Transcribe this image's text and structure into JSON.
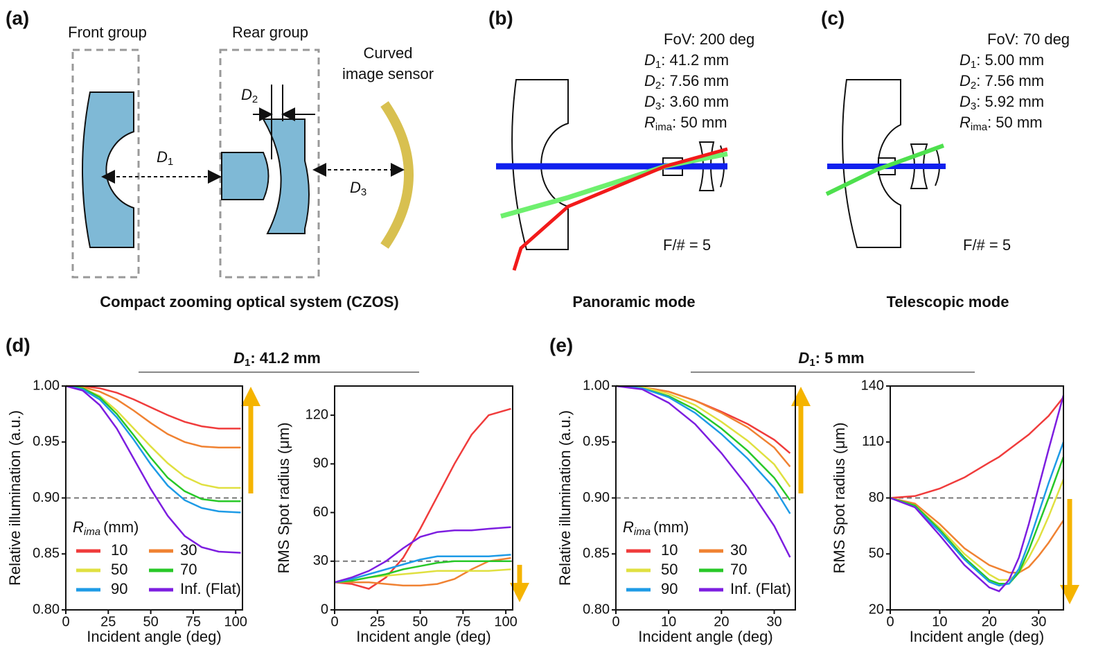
{
  "panel_labels": [
    "(a)",
    "(b)",
    "(c)",
    "(d)",
    "(e)"
  ],
  "diagram_a": {
    "front": "Front group",
    "rear": "Rear group",
    "sensor": [
      "Curved",
      "image sensor"
    ],
    "d1": [
      "D",
      "1"
    ],
    "d2": [
      "D",
      "2"
    ],
    "d3": [
      "D",
      "3"
    ],
    "caption": "Compact zooming optical system (CZOS)"
  },
  "diagram_b": {
    "specs": [
      [
        "FoV: 200 deg"
      ],
      [
        "D",
        "1",
        ": 41.2 mm"
      ],
      [
        "D",
        "2",
        ": 7.56 mm"
      ],
      [
        "D",
        "3",
        ": 3.60 mm"
      ],
      [
        "R",
        "ima",
        ": 50 mm"
      ]
    ],
    "fnum": "F/# = 5",
    "caption": "Panoramic mode"
  },
  "diagram_c": {
    "specs": [
      [
        "FoV: 70 deg"
      ],
      [
        "D",
        "1",
        ": 5.00 mm"
      ],
      [
        "D",
        "2",
        ": 7.56 mm"
      ],
      [
        "D",
        "3",
        ": 5.92 mm"
      ],
      [
        "R",
        "ima",
        ": 50 mm"
      ]
    ],
    "fnum": "F/# = 5",
    "caption": "Telescopic mode"
  },
  "group_headers": [
    [
      "D",
      "1",
      ": 41.2 mm"
    ],
    [
      "D",
      "1",
      ": 5 mm"
    ]
  ],
  "chart_data": [
    {
      "type": "line",
      "xlabel": "Incident angle (deg)",
      "ylabel": "Relative illumination (a.u.)",
      "x": [
        0,
        10,
        20,
        30,
        40,
        50,
        60,
        70,
        80,
        90,
        103
      ],
      "xlim": [
        0,
        104
      ],
      "xticks": [
        0,
        25,
        50,
        75,
        100
      ],
      "ylim": [
        0.8,
        1.0
      ],
      "yticks": [
        {
          "value": 0.8,
          "label": "0.80"
        },
        {
          "value": 0.85,
          "label": "0.85"
        },
        {
          "value": 0.9,
          "label": "0.90"
        },
        {
          "value": 0.95,
          "label": "0.95"
        },
        {
          "value": 1.0,
          "label": "1.00"
        }
      ],
      "reference_line": 0.9,
      "legend": true,
      "legend_title": [
        "R",
        "ima",
        "(mm)"
      ],
      "series": [
        {
          "name": "10",
          "color": "#f03c3c",
          "values": [
            1.0,
            1.0,
            0.998,
            0.994,
            0.988,
            0.981,
            0.974,
            0.968,
            0.964,
            0.962,
            0.962
          ]
        },
        {
          "name": "30",
          "color": "#f08232",
          "values": [
            1.0,
            0.999,
            0.995,
            0.988,
            0.978,
            0.967,
            0.957,
            0.95,
            0.946,
            0.945,
            0.945
          ]
        },
        {
          "name": "50",
          "color": "#e0e040",
          "values": [
            1.0,
            0.998,
            0.991,
            0.978,
            0.962,
            0.946,
            0.931,
            0.919,
            0.912,
            0.909,
            0.909
          ]
        },
        {
          "name": "70",
          "color": "#28c828",
          "values": [
            1.0,
            0.998,
            0.99,
            0.975,
            0.956,
            0.936,
            0.918,
            0.906,
            0.899,
            0.897,
            0.897
          ]
        },
        {
          "name": "90",
          "color": "#1e9be6",
          "values": [
            1.0,
            0.997,
            0.988,
            0.972,
            0.952,
            0.93,
            0.911,
            0.898,
            0.891,
            0.888,
            0.887
          ]
        },
        {
          "name": "Inf. (Flat)",
          "color": "#7d1ee0",
          "values": [
            1.0,
            0.996,
            0.983,
            0.962,
            0.935,
            0.908,
            0.884,
            0.866,
            0.856,
            0.852,
            0.851
          ]
        }
      ]
    },
    {
      "type": "line",
      "xlabel": "Incident angle (deg)",
      "ylabel": "RMS Spot radius (μm)",
      "x": [
        0,
        10,
        20,
        30,
        40,
        50,
        60,
        70,
        80,
        90,
        103
      ],
      "xlim": [
        0,
        104
      ],
      "xticks": [
        0,
        25,
        50,
        75,
        100
      ],
      "ylim": [
        0,
        138
      ],
      "yticks": [
        0,
        30,
        60,
        90,
        120
      ],
      "reference_line": 30,
      "legend": false,
      "series": [
        {
          "name": "10",
          "color": "#f03c3c",
          "values": [
            17,
            16,
            13,
            20,
            32,
            50,
            70,
            90,
            108,
            120,
            124
          ]
        },
        {
          "name": "30",
          "color": "#f08232",
          "values": [
            17,
            17,
            17,
            16,
            15,
            15,
            16,
            19,
            25,
            30,
            32
          ]
        },
        {
          "name": "50",
          "color": "#e0e040",
          "values": [
            17,
            18,
            20,
            21,
            22,
            23,
            24,
            24,
            24,
            24,
            25
          ]
        },
        {
          "name": "70",
          "color": "#28c828",
          "values": [
            17,
            18,
            20,
            22,
            25,
            27,
            29,
            30,
            30,
            30,
            30
          ]
        },
        {
          "name": "90",
          "color": "#1e9be6",
          "values": [
            17,
            19,
            22,
            25,
            28,
            31,
            33,
            33,
            33,
            33,
            34
          ]
        },
        {
          "name": "Inf. (Flat)",
          "color": "#7d1ee0",
          "values": [
            17,
            20,
            24,
            30,
            38,
            45,
            48,
            49,
            49,
            50,
            51
          ]
        }
      ]
    },
    {
      "type": "line",
      "xlabel": "Incident angle (deg)",
      "ylabel": "Relative illumination (a.u.)",
      "x": [
        0,
        5,
        10,
        15,
        20,
        25,
        30,
        33
      ],
      "xlim": [
        0,
        34
      ],
      "xticks": [
        0,
        10,
        20,
        30
      ],
      "ylim": [
        0.8,
        1.0
      ],
      "yticks": [
        {
          "value": 0.8,
          "label": "0.80"
        },
        {
          "value": 0.85,
          "label": "0.85"
        },
        {
          "value": 0.9,
          "label": "0.90"
        },
        {
          "value": 0.95,
          "label": "0.95"
        },
        {
          "value": 1.0,
          "label": "1.00"
        }
      ],
      "reference_line": 0.9,
      "legend": true,
      "legend_title": [
        "R",
        "ima",
        "(mm)"
      ],
      "series": [
        {
          "name": "10",
          "color": "#f03c3c",
          "values": [
            1.0,
            0.999,
            0.995,
            0.987,
            0.977,
            0.966,
            0.952,
            0.94
          ]
        },
        {
          "name": "30",
          "color": "#f08232",
          "values": [
            1.0,
            0.999,
            0.995,
            0.987,
            0.976,
            0.963,
            0.945,
            0.928
          ]
        },
        {
          "name": "50",
          "color": "#e0e040",
          "values": [
            1.0,
            0.999,
            0.993,
            0.983,
            0.968,
            0.951,
            0.93,
            0.91
          ]
        },
        {
          "name": "70",
          "color": "#28c828",
          "values": [
            1.0,
            0.998,
            0.991,
            0.979,
            0.962,
            0.942,
            0.918,
            0.898
          ]
        },
        {
          "name": "90",
          "color": "#1e9be6",
          "values": [
            1.0,
            0.998,
            0.99,
            0.976,
            0.957,
            0.935,
            0.909,
            0.886
          ]
        },
        {
          "name": "Inf. (Flat)",
          "color": "#7d1ee0",
          "values": [
            1.0,
            0.997,
            0.985,
            0.966,
            0.94,
            0.91,
            0.875,
            0.847
          ]
        }
      ]
    },
    {
      "type": "line",
      "xlabel": "Incident angle (deg)",
      "ylabel": "RMS Spot radius (μm)",
      "x": [
        0,
        5,
        10,
        15,
        20,
        22,
        24,
        26,
        28,
        30,
        32,
        35
      ],
      "xlim": [
        0,
        35
      ],
      "xticks": [
        0,
        10,
        20,
        30
      ],
      "ylim": [
        20,
        140
      ],
      "yticks": [
        20,
        50,
        80,
        110,
        140
      ],
      "reference_line": 80,
      "legend": false,
      "series": [
        {
          "name": "10",
          "color": "#f03c3c",
          "values": [
            80,
            81,
            85,
            91,
            99,
            102,
            106,
            110,
            114,
            119,
            124,
            134
          ]
        },
        {
          "name": "30",
          "color": "#f08232",
          "values": [
            80,
            77,
            66,
            53,
            44,
            42,
            40,
            40,
            43,
            49,
            56,
            68
          ]
        },
        {
          "name": "50",
          "color": "#e0e040",
          "values": [
            80,
            76,
            64,
            50,
            39,
            36,
            36,
            40,
            48,
            58,
            70,
            90
          ]
        },
        {
          "name": "70",
          "color": "#28c828",
          "values": [
            80,
            76,
            63,
            48,
            36,
            34,
            34,
            40,
            52,
            66,
            80,
            102
          ]
        },
        {
          "name": "90",
          "color": "#1e9be6",
          "values": [
            80,
            75,
            62,
            47,
            35,
            33,
            34,
            42,
            56,
            72,
            88,
            110
          ]
        },
        {
          "name": "Inf. (Flat)",
          "color": "#7d1ee0",
          "values": [
            80,
            75,
            60,
            44,
            32,
            30,
            36,
            48,
            66,
            86,
            106,
            135
          ]
        }
      ]
    }
  ]
}
